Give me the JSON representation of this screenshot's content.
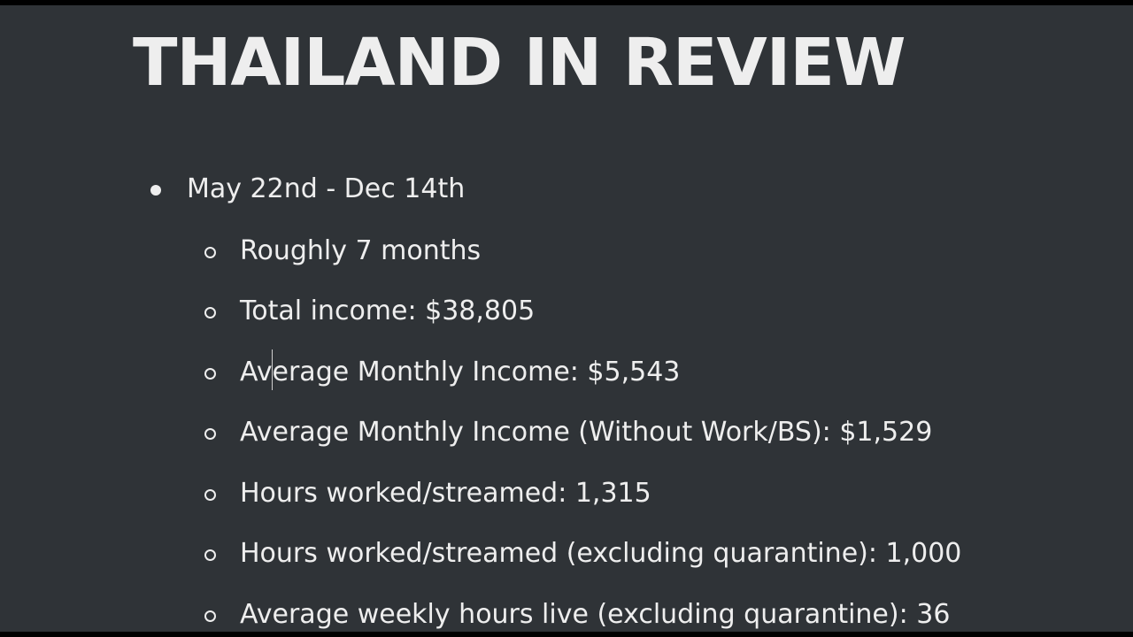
{
  "slide": {
    "title": "THAILAND IN REVIEW",
    "top_item": "May 22nd - Dec 14th",
    "sub_items": [
      "Roughly 7 months",
      "Total income: $38,805",
      "Average Monthly Income: $5,543",
      "Average Monthly Income (Without Work/BS): $1,529",
      "Hours worked/streamed: 1,315",
      "Hours worked/streamed (excluding quarantine): 1,000",
      "Average weekly hours live (excluding quarantine): 36"
    ]
  },
  "colors": {
    "background": "#2f3337",
    "text": "#eeeeee",
    "frame": "#000000"
  },
  "icons": {
    "top_bullet": "filled-circle-bullet-icon",
    "sub_bullet": "hollow-circle-bullet-icon"
  }
}
